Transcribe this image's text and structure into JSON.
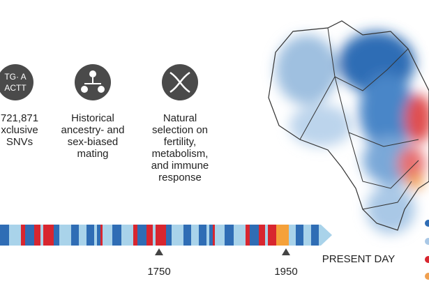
{
  "items": [
    {
      "icon_text": [
        "TG· A",
        "ACTT"
      ],
      "lines": [
        "721,871",
        "xclusive",
        "SNVs"
      ]
    },
    {
      "lines": [
        "Historical",
        "ancestry- and",
        "sex-biased",
        "mating"
      ]
    },
    {
      "lines": [
        "Natural",
        "selection on",
        "fertility,",
        "metabolism,",
        "and immune",
        "response"
      ]
    }
  ],
  "timeline": {
    "markers": [
      "1750",
      "1950"
    ],
    "end_label": "PRESENT DAY"
  }
}
